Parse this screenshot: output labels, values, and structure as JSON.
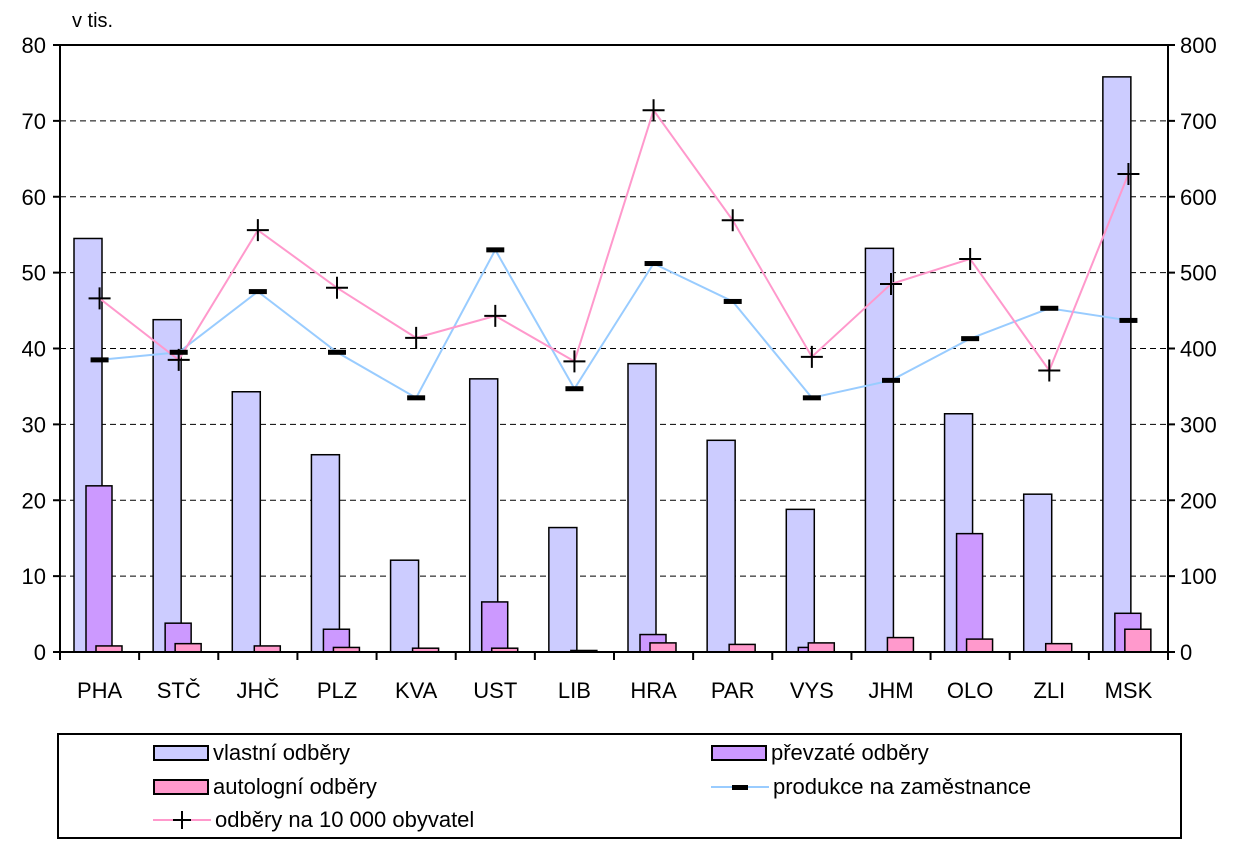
{
  "unit_label": "v tis.",
  "chart_data": {
    "type": "bar",
    "categories": [
      "PHA",
      "STČ",
      "JHČ",
      "PLZ",
      "KVA",
      "UST",
      "LIB",
      "HRA",
      "PAR",
      "VYS",
      "JHM",
      "OLO",
      "ZLI",
      "MSK"
    ],
    "ylim": [
      0,
      80
    ],
    "y2lim": [
      0,
      800
    ],
    "yticks": [
      "0",
      "10",
      "20",
      "30",
      "40",
      "50",
      "60",
      "70",
      "80"
    ],
    "y2ticks": [
      "0",
      "100",
      "200",
      "300",
      "400",
      "500",
      "600",
      "700",
      "800"
    ],
    "grid": "horizontal dashed",
    "legend_position": "bottom",
    "series": [
      {
        "name": "vlastní odběry",
        "kind": "bar",
        "axis": "left",
        "color": "#ccccff",
        "values": [
          54.5,
          43.8,
          34.3,
          26.0,
          12.1,
          36.0,
          16.4,
          38.0,
          27.9,
          18.8,
          53.2,
          31.4,
          20.8,
          75.8
        ]
      },
      {
        "name": "převzaté odběry",
        "kind": "bar",
        "axis": "left",
        "color": "#cc99ff",
        "values": [
          21.9,
          3.8,
          0.0,
          3.0,
          0.0,
          6.6,
          0.0,
          2.3,
          0.0,
          0.6,
          0.0,
          15.6,
          0.0,
          5.1
        ]
      },
      {
        "name": "autologní odběry",
        "kind": "bar",
        "axis": "left",
        "color": "#ff99cc",
        "values": [
          0.8,
          1.1,
          0.8,
          0.6,
          0.5,
          0.5,
          0.2,
          1.2,
          1.0,
          1.2,
          1.9,
          1.7,
          1.1,
          3.0
        ]
      },
      {
        "name": "produkce na zaměstnance",
        "kind": "line",
        "axis": "right",
        "color": "#99ccff",
        "marker": "dash",
        "values": [
          385,
          395,
          475,
          395,
          335,
          530,
          347,
          512,
          462,
          335,
          358,
          413,
          453,
          437
        ]
      },
      {
        "name": "odběry na 10 000 obyvatel",
        "kind": "line",
        "axis": "right",
        "color": "#ff99cc",
        "marker": "plus",
        "values": [
          466,
          385,
          556,
          480,
          414,
          443,
          383,
          714,
          569,
          389,
          485,
          518,
          371,
          630
        ]
      }
    ]
  }
}
